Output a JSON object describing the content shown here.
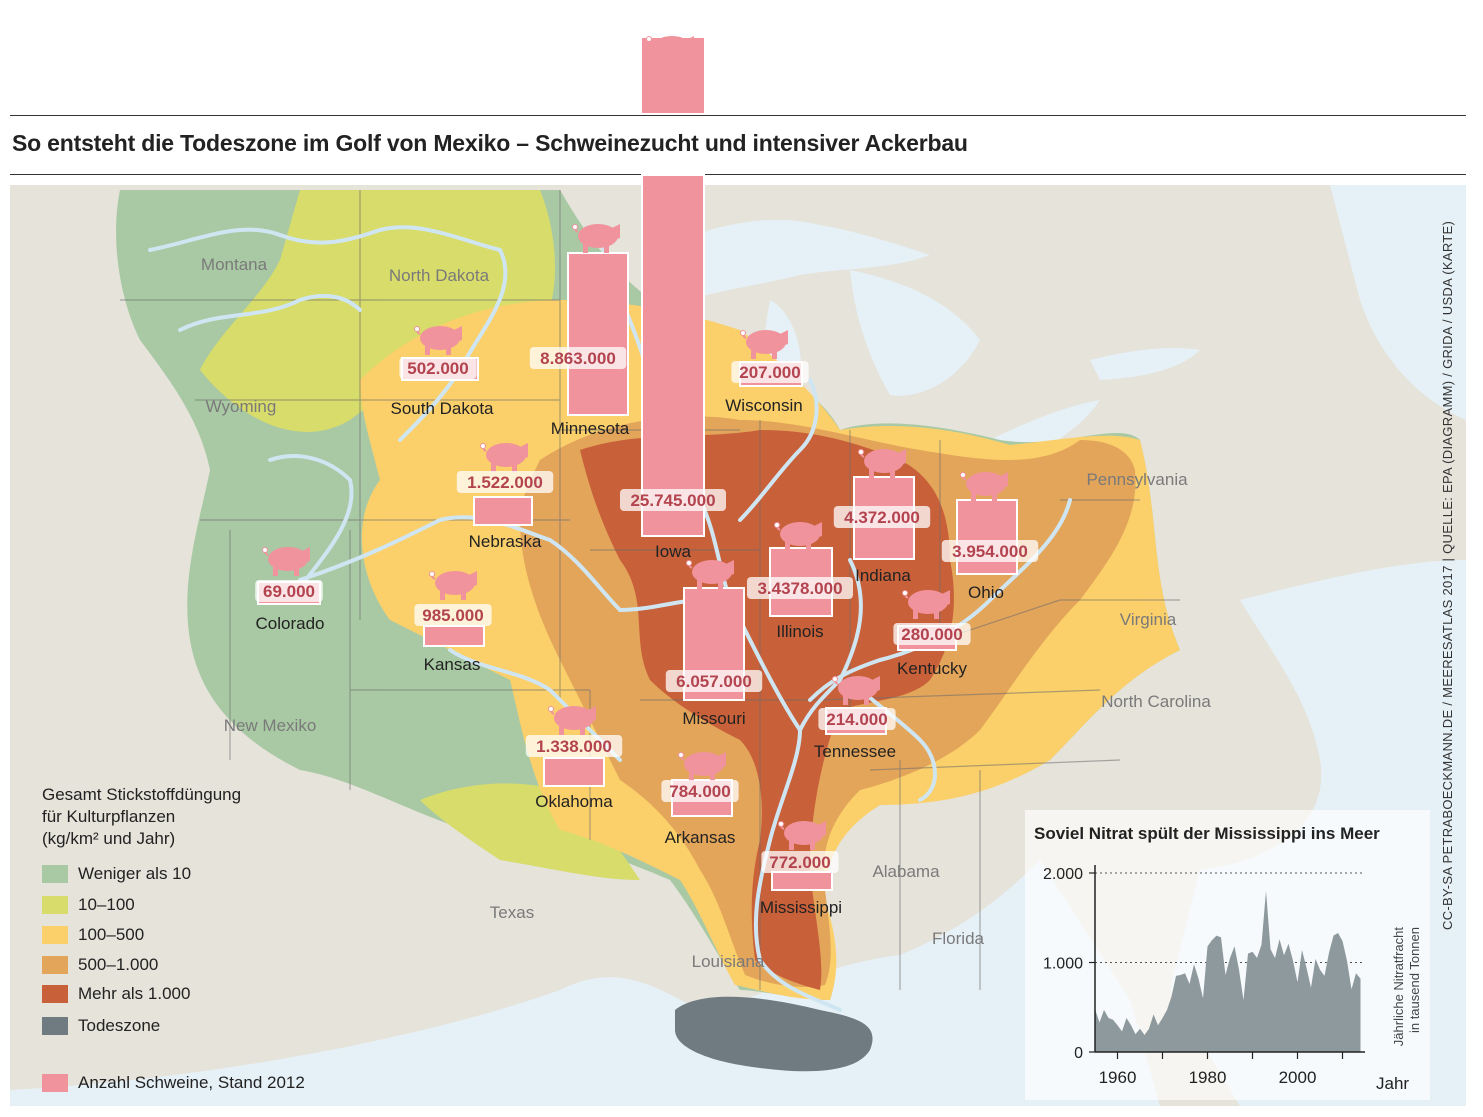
{
  "headline": "So entsteht die Todeszone im Golf von Mexiko – Schweinezucht und intensiver Ackerbau",
  "credit": "CC-BY-SA PETRABOECKMANN.DE / MEERESATLAS 2017 | QUELLE: EPA (DIAGRAMM) / GRIDA / USDA (KARTE)",
  "region_labels": [
    "Montana",
    "North Dakota",
    "Wyoming",
    "New Mexiko",
    "Texas",
    "Louisiana",
    "Alabama",
    "Florida",
    "Pennsylvania",
    "Virginia",
    "North Carolina"
  ],
  "states": [
    {
      "name": "South Dakota",
      "pigs": "502.000"
    },
    {
      "name": "Minnesota",
      "pigs": "8.863.000"
    },
    {
      "name": "Iowa",
      "pigs": "25.745.000"
    },
    {
      "name": "Wisconsin",
      "pigs": "207.000"
    },
    {
      "name": "Nebraska",
      "pigs": "1.522.000"
    },
    {
      "name": "Colorado",
      "pigs": "69.000"
    },
    {
      "name": "Kansas",
      "pigs": "985.000"
    },
    {
      "name": "Oklahoma",
      "pigs": "1.338.000"
    },
    {
      "name": "Missouri",
      "pigs": "6.057.000"
    },
    {
      "name": "Arkansas",
      "pigs": "784.000"
    },
    {
      "name": "Illinois",
      "pigs": "3.4378.000"
    },
    {
      "name": "Indiana",
      "pigs": "4.372.000"
    },
    {
      "name": "Ohio",
      "pigs": "3.954.000"
    },
    {
      "name": "Kentucky",
      "pigs": "280.000"
    },
    {
      "name": "Tennessee",
      "pigs": "214.000"
    },
    {
      "name": "Mississippi",
      "pigs": "772.000"
    }
  ],
  "legend": {
    "title_lines": [
      "Gesamt Stickstoffdüngung",
      "für Kulturpflanzen",
      "(kg/km² und Jahr)"
    ],
    "items": [
      {
        "label": "Weniger als 10",
        "color": "#a9c9a4"
      },
      {
        "label": "10–100",
        "color": "#d8dc6a"
      },
      {
        "label": "100–500",
        "color": "#fbd06a"
      },
      {
        "label": "500–1.000",
        "color": "#e3a55a"
      },
      {
        "label": "Mehr als 1.000",
        "color": "#c8603a"
      },
      {
        "label": "Todeszone",
        "color": "#6f7b80"
      }
    ],
    "pigs_label": "Anzahl Schweine, Stand 2012",
    "pigs_color": "#f0939c"
  },
  "chart_data": {
    "type": "area",
    "title": "Soviel Nitrat spült der Mississippi ins Meer",
    "ylabel_lines": [
      "Jährliche Nitratfracht",
      "in tausend Tonnen"
    ],
    "xlabel": "Jahr",
    "ylim": [
      0,
      2000
    ],
    "yticks": [
      0,
      1000,
      2000
    ],
    "ytick_labels": [
      "0",
      "1.000",
      "2.000"
    ],
    "xlim": [
      1955,
      2015
    ],
    "xticks": [
      1960,
      1980,
      2000
    ],
    "x": [
      1955,
      1956,
      1957,
      1958,
      1959,
      1960,
      1961,
      1962,
      1963,
      1964,
      1965,
      1966,
      1967,
      1968,
      1969,
      1970,
      1971,
      1972,
      1973,
      1974,
      1975,
      1976,
      1977,
      1978,
      1979,
      1980,
      1981,
      1982,
      1983,
      1984,
      1985,
      1986,
      1987,
      1988,
      1989,
      1990,
      1991,
      1992,
      1993,
      1994,
      1995,
      1996,
      1997,
      1998,
      1999,
      2000,
      2001,
      2002,
      2003,
      2004,
      2005,
      2006,
      2007,
      2008,
      2009,
      2010,
      2011,
      2012,
      2013,
      2014
    ],
    "values": [
      480,
      330,
      470,
      380,
      360,
      300,
      230,
      380,
      300,
      200,
      260,
      190,
      260,
      420,
      300,
      380,
      470,
      620,
      850,
      860,
      880,
      760,
      980,
      820,
      600,
      1180,
      1250,
      1300,
      1280,
      860,
      1050,
      1180,
      920,
      580,
      1100,
      1120,
      1050,
      1200,
      1800,
      1150,
      1050,
      1260,
      1080,
      1210,
      1020,
      780,
      1140,
      940,
      720,
      1040,
      920,
      850,
      1110,
      1300,
      1330,
      1240,
      1020,
      700,
      880,
      820
    ],
    "color": "#8e999d"
  }
}
